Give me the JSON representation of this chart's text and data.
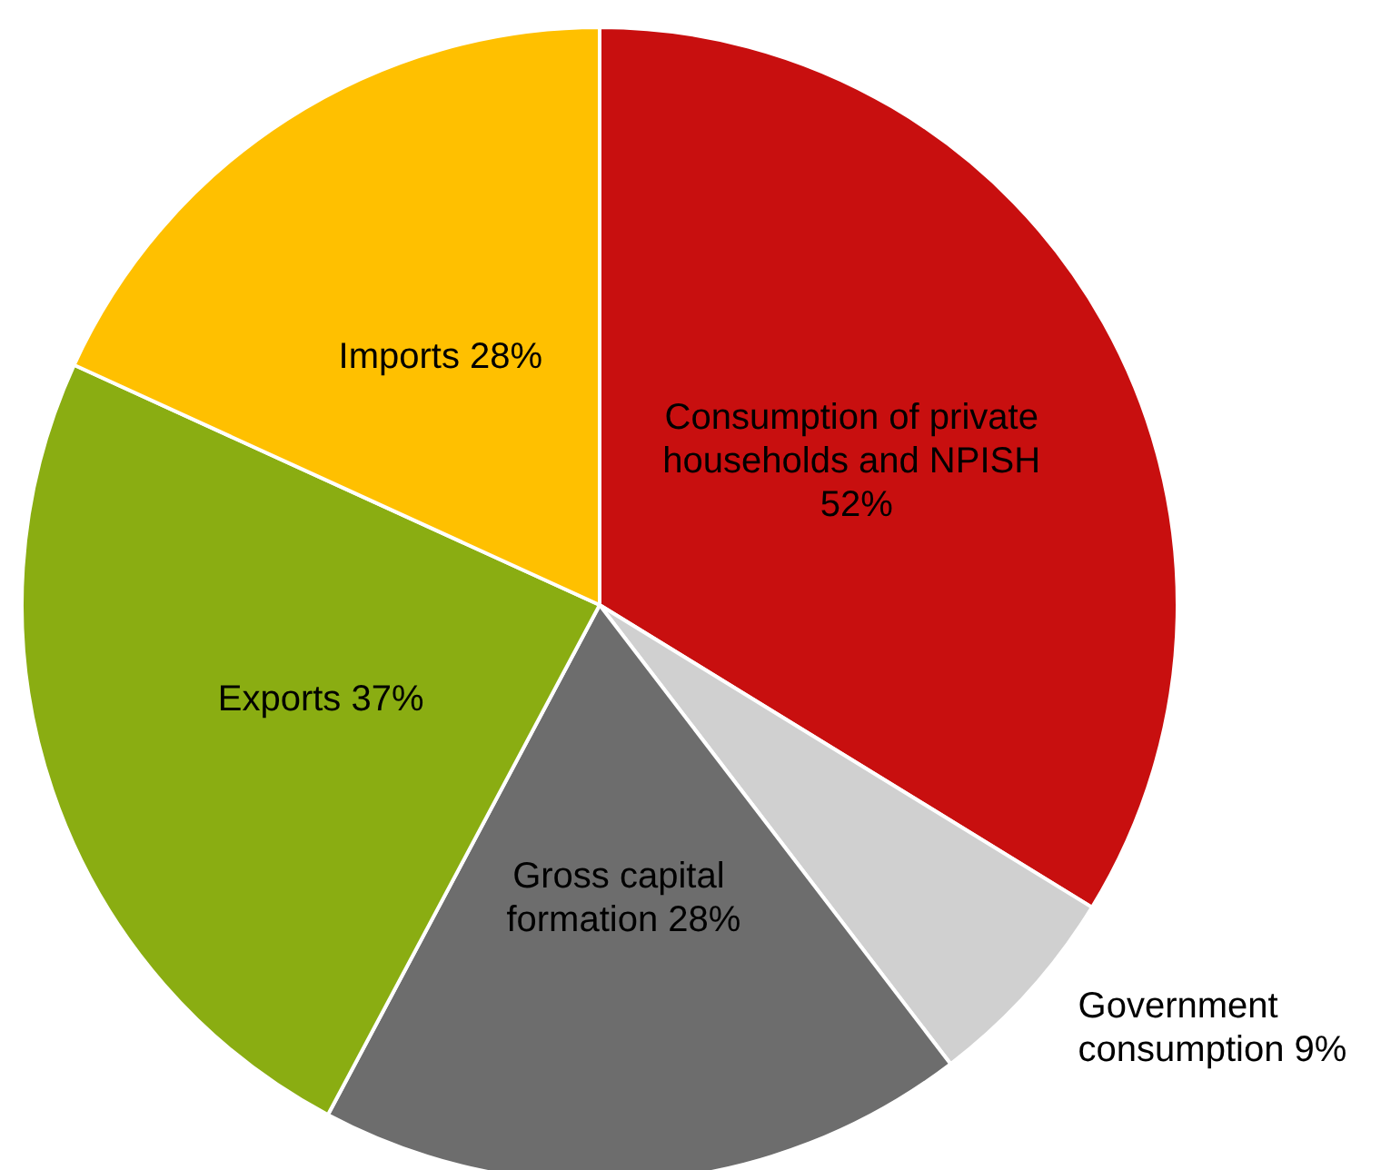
{
  "chart_data": {
    "type": "pie",
    "categories": [
      "Consumption of private households and NPISH",
      "Government consumption",
      "Gross capital formation",
      "Exports",
      "Imports"
    ],
    "values": [
      52,
      9,
      28,
      37,
      28
    ],
    "value_labels": [
      "52%",
      "9%",
      "28%",
      "37%",
      "28%"
    ],
    "colors": [
      "#c80f0f",
      "#d0d0d0",
      "#6d6d6d",
      "#8aad12",
      "#ffc000"
    ],
    "legend": false
  }
}
